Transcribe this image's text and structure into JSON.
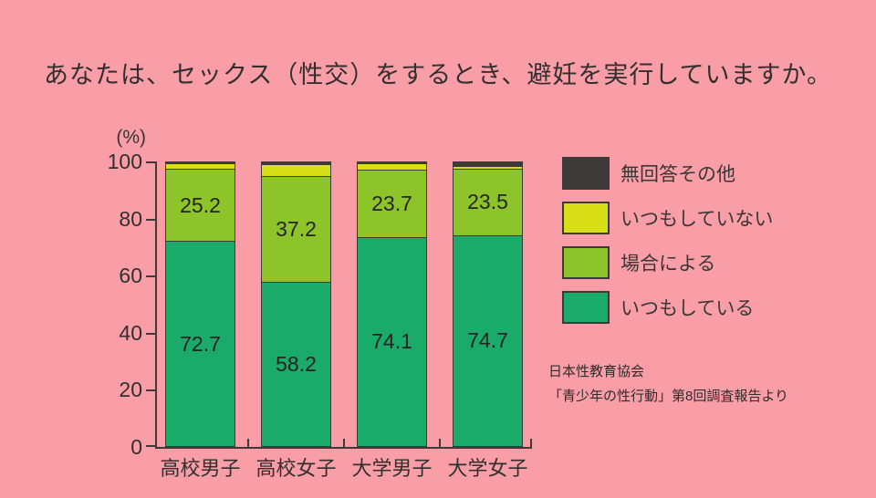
{
  "page": {
    "background_color": "#f99ea6",
    "ink_color": "#3e3a39"
  },
  "title": "あなたは、セックス（性交）をするとき、避妊を実行していますか。",
  "source": {
    "line1": "日本性教育協会",
    "line2": "「青少年の性行動」第8回調査報告より"
  },
  "chart_data": {
    "type": "bar",
    "subtype": "stacked-percentage",
    "title": "あなたは、セックス（性交）をするとき、避妊を実行していますか。",
    "categories": [
      "高校男子",
      "高校女子",
      "大学男子",
      "大学女子"
    ],
    "series": [
      {
        "name": "いつもしている",
        "color": "#1aab6b",
        "values": [
          72.7,
          58.2,
          74.1,
          74.7
        ],
        "labels_visible": true
      },
      {
        "name": "場合による",
        "color": "#8cc42a",
        "values": [
          25.2,
          37.2,
          23.7,
          23.5
        ],
        "labels_visible": true
      },
      {
        "name": "いつもしていない",
        "color": "#d8df16",
        "values": [
          1.7,
          4.0,
          1.8,
          0.6
        ],
        "labels_visible": false,
        "values_estimated": true
      },
      {
        "name": "無回答その他",
        "color": "#3e3a39",
        "values": [
          0.4,
          0.6,
          0.4,
          1.2
        ],
        "labels_visible": false,
        "values_estimated": true
      }
    ],
    "y_axis": {
      "unit_label": "(%)",
      "ticks": [
        0,
        20,
        40,
        60,
        80,
        100
      ],
      "min": 0,
      "max": 100
    },
    "legend": {
      "position": "right",
      "order": [
        "無回答その他",
        "いつもしていない",
        "場合による",
        "いつもしている"
      ]
    },
    "grid": false
  }
}
